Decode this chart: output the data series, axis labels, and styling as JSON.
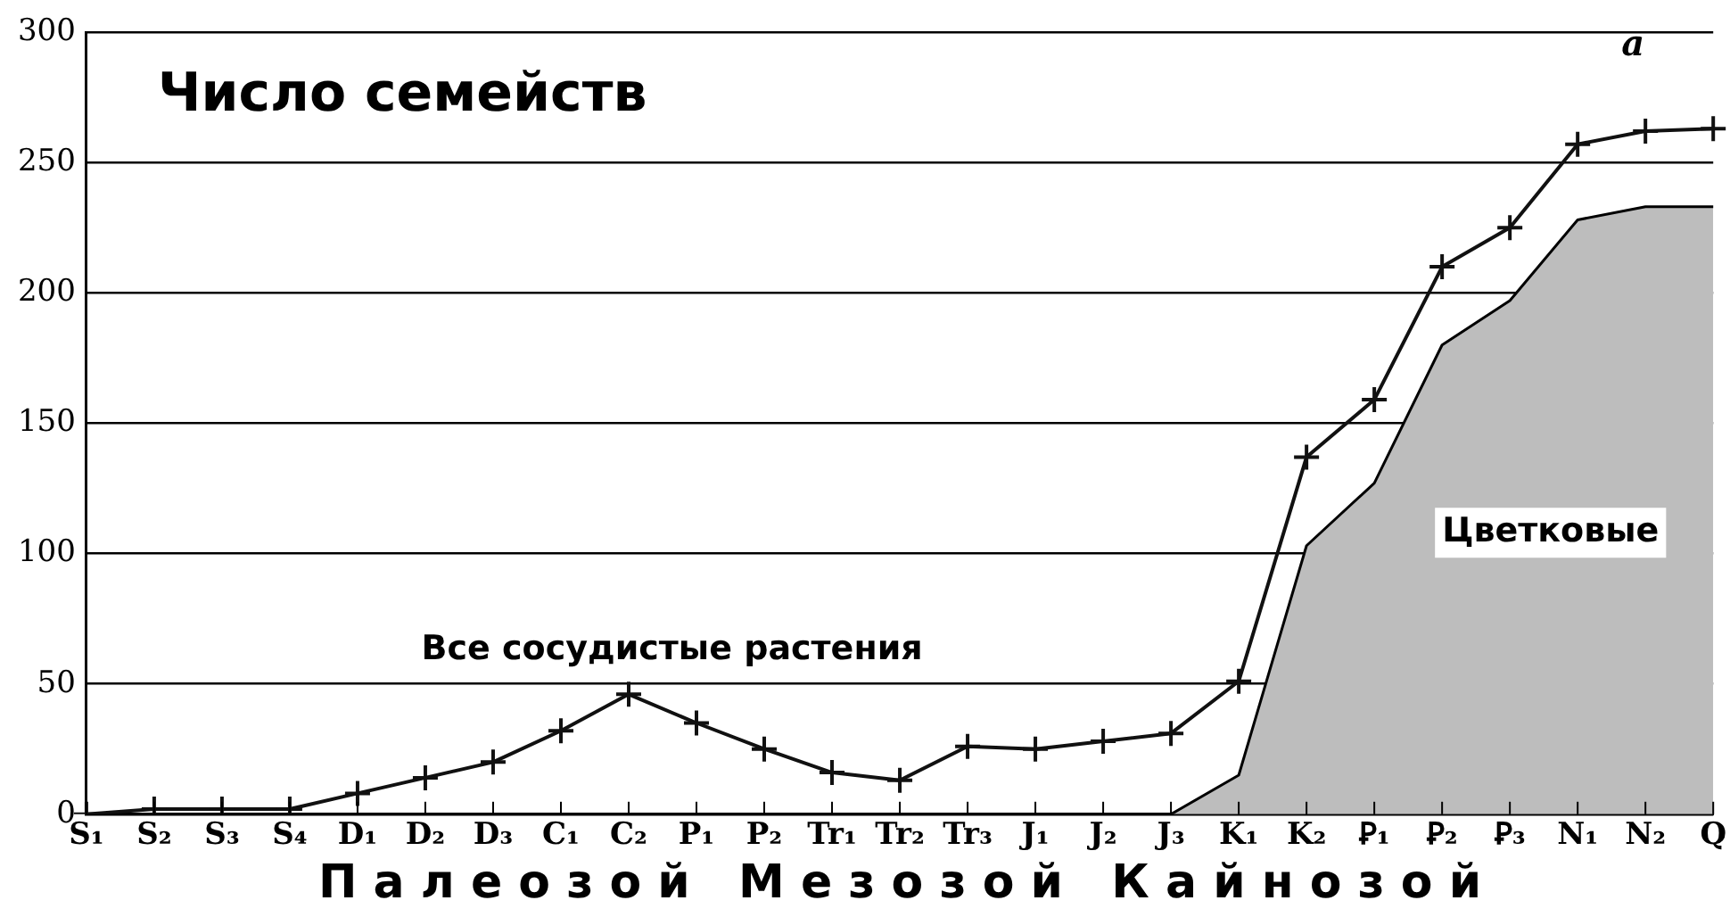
{
  "chart_data": {
    "type": "line",
    "title": "Число семейств",
    "xlabel": "П а л е о з о й   М е з о з о й   К а й н о з о й",
    "categories": [
      "S₁",
      "S₂",
      "S₃",
      "S₄",
      "D₁",
      "D₂",
      "D₃",
      "C₁",
      "C₂",
      "P₁",
      "P₂",
      "Tr₁",
      "Tr₂",
      "Tr₃",
      "J₁",
      "J₂",
      "J₃",
      "K₁",
      "K₂",
      "Ꝑ₁",
      "Ꝑ₂",
      "Ꝑ₃",
      "N₁",
      "N₂",
      "Q"
    ],
    "series": [
      {
        "name": "Цветковые",
        "type": "area",
        "color": "#bdbdbd",
        "values": [
          null,
          null,
          null,
          null,
          null,
          null,
          null,
          null,
          null,
          null,
          null,
          null,
          null,
          null,
          null,
          null,
          0,
          15,
          103,
          127,
          180,
          197,
          228,
          233,
          233
        ]
      },
      {
        "name": "Все сосудистые растения",
        "color": "#111111",
        "marker": "cross",
        "values": [
          0,
          2,
          2,
          2,
          8,
          14,
          20,
          32,
          46,
          35,
          25,
          16,
          13,
          26,
          25,
          28,
          31,
          51,
          137,
          159,
          210,
          225,
          257,
          262,
          263
        ]
      }
    ],
    "ylim": [
      0,
      300
    ],
    "yticks": [
      0,
      50,
      100,
      150,
      200,
      250,
      300
    ],
    "grid": "y",
    "legend": false,
    "annotations": [
      "а"
    ]
  }
}
